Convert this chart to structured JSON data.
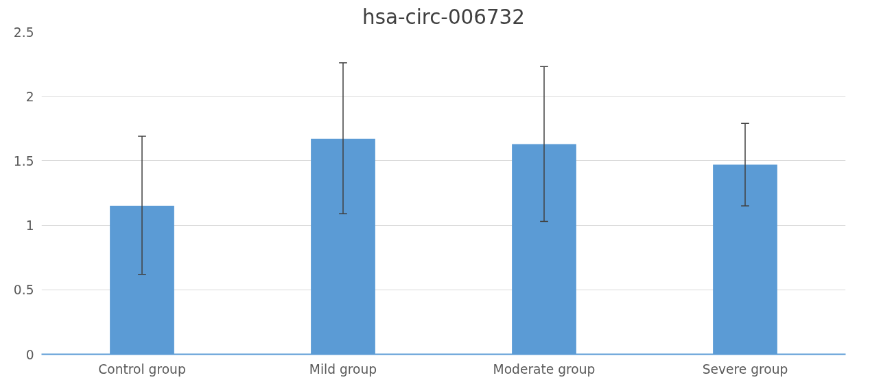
{
  "chart_data": {
    "type": "bar",
    "title": "hsa-circ-006732",
    "categories": [
      "Control group",
      "Mild group",
      "Moderate group",
      "Severe group"
    ],
    "values": [
      1.15,
      1.67,
      1.63,
      1.47
    ],
    "errors": [
      [
        0.62,
        1.69
      ],
      [
        1.09,
        2.26
      ],
      [
        1.03,
        2.23
      ],
      [
        1.15,
        1.79
      ]
    ],
    "color": "#5b9bd5",
    "ylim": [
      0,
      2.5
    ],
    "yticks": [
      0,
      0.5,
      1,
      1.5,
      2,
      2.5
    ],
    "grid": "y"
  }
}
